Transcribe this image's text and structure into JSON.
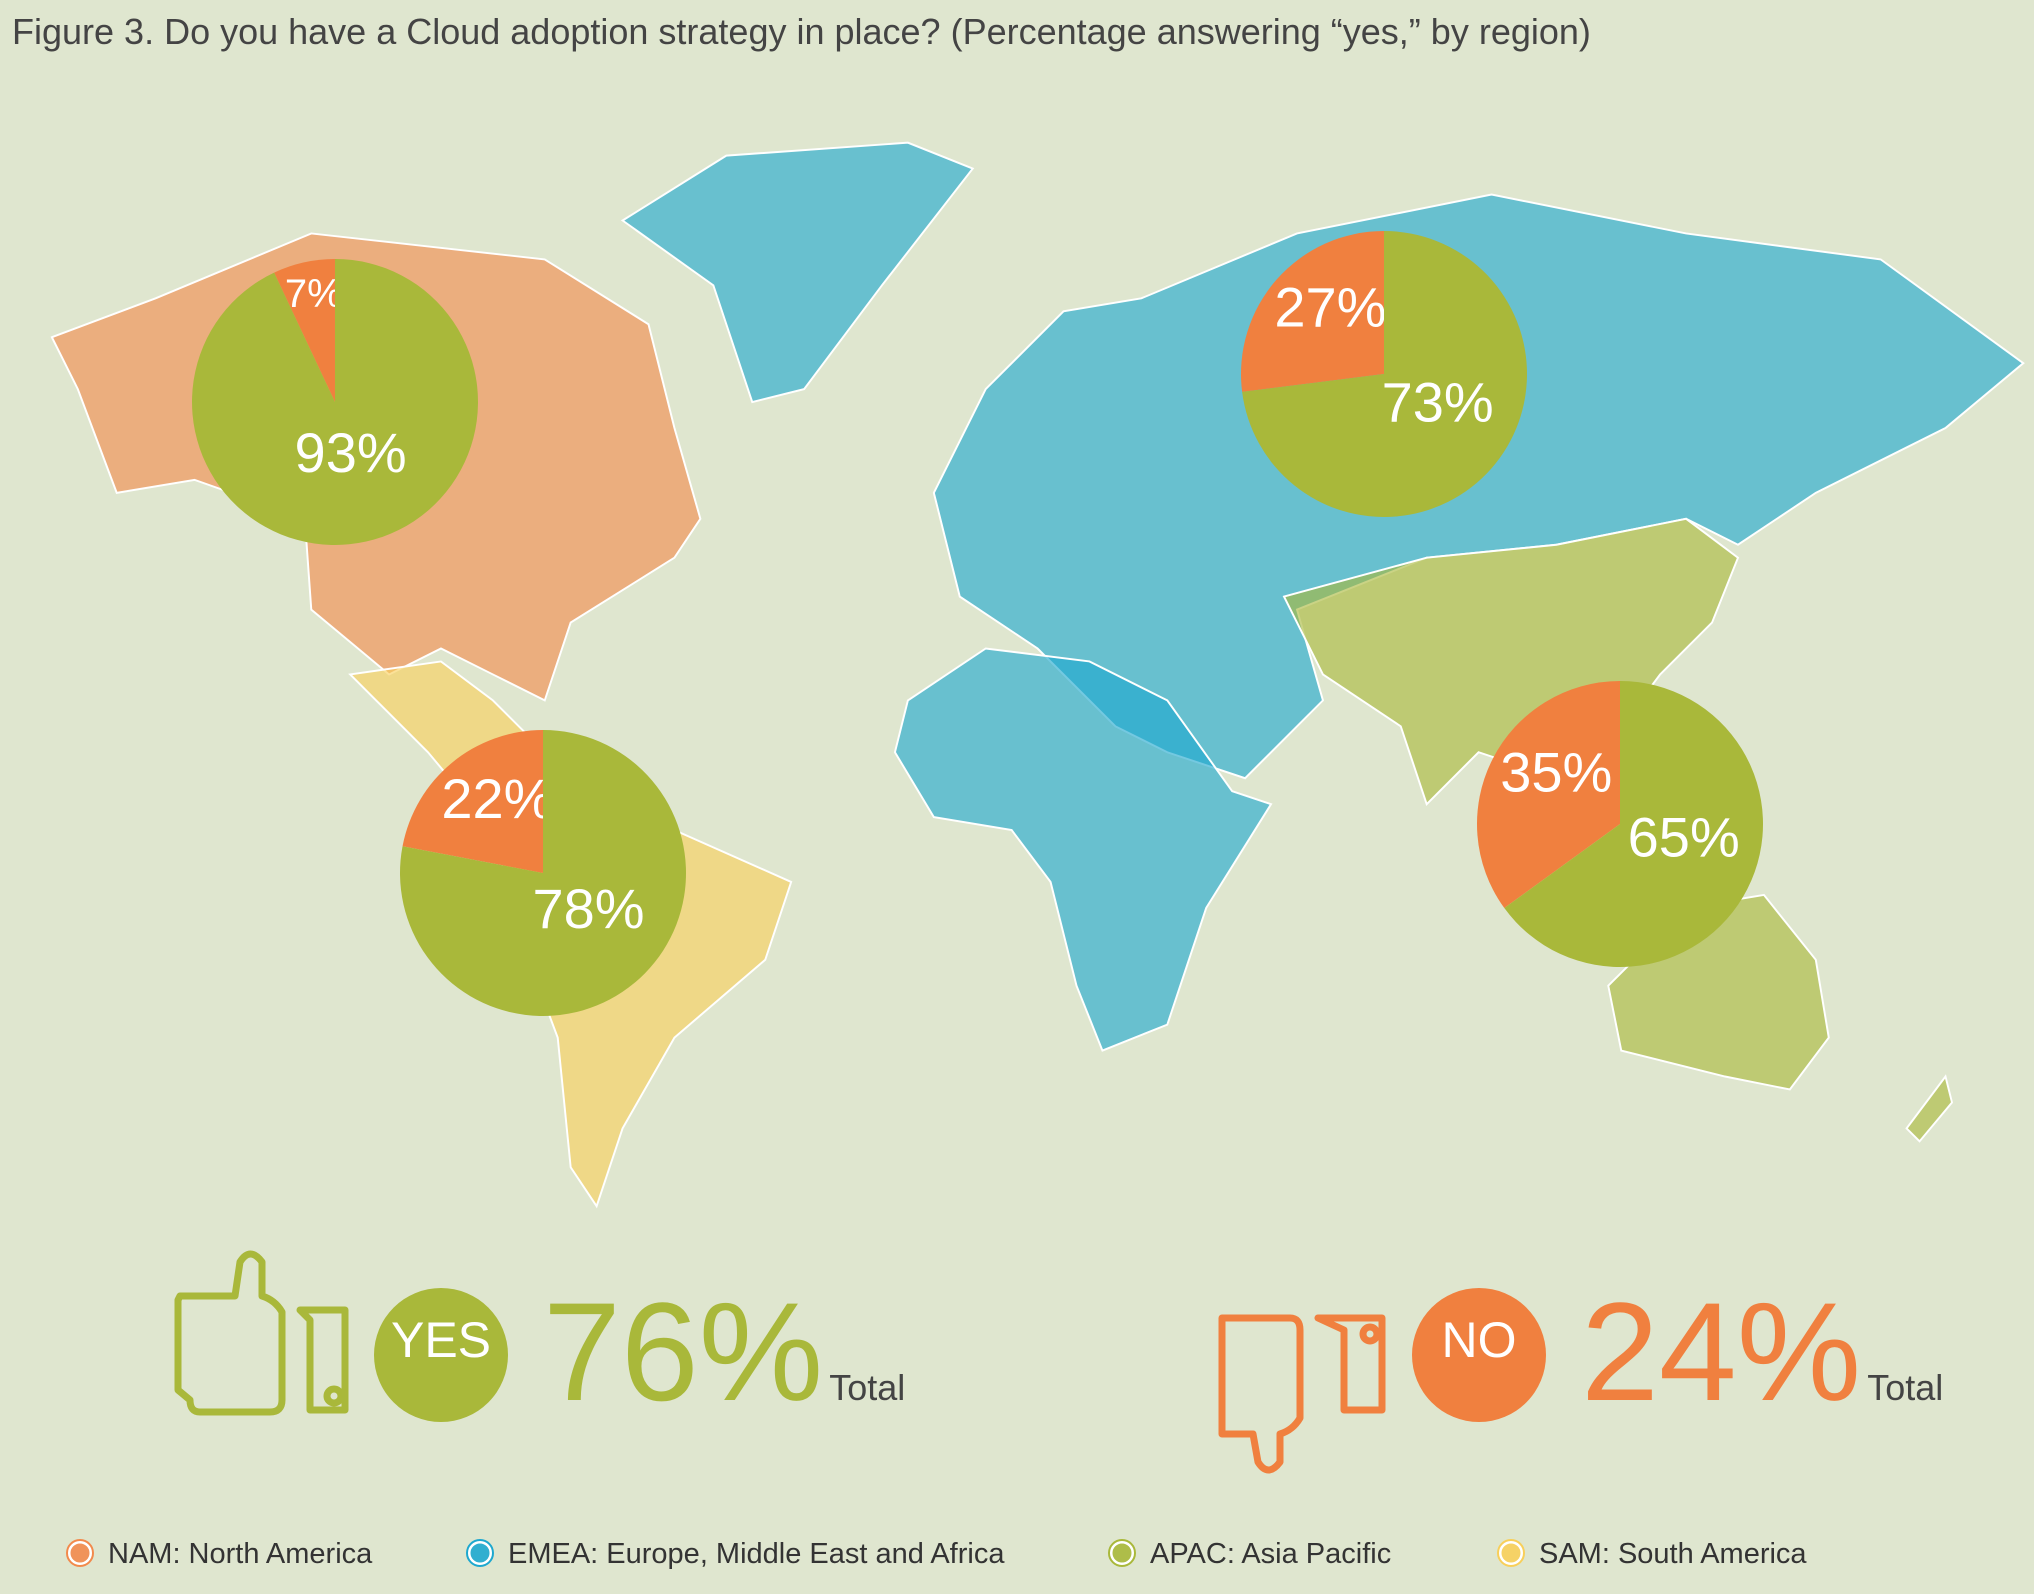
{
  "title": "Figure 3. Do you have a Cloud adoption strategy in place? (Percentage answering “yes,” by region)",
  "chart_data": [
    {
      "type": "pie",
      "values": [
        7,
        93
      ],
      "value_labels": [
        "7%",
        "93%"
      ],
      "colors": [
        "#f0803f",
        "#a9b83a"
      ]
    },
    {
      "type": "pie",
      "values": [
        27,
        73
      ],
      "value_labels": [
        "27%",
        "73%"
      ],
      "colors": [
        "#f0803f",
        "#a9b83a"
      ]
    },
    {
      "type": "pie",
      "values": [
        22,
        78
      ],
      "value_labels": [
        "22%",
        "78%"
      ],
      "colors": [
        "#f0803f",
        "#a9b83a"
      ]
    },
    {
      "type": "pie",
      "values": [
        35,
        65
      ],
      "value_labels": [
        "35%",
        "65%"
      ],
      "colors": [
        "#f0803f",
        "#a9b83a"
      ]
    }
  ],
  "totals": [
    {
      "badge": "YES",
      "value": "76%",
      "note": "Total",
      "color": "#a9b83a"
    },
    {
      "badge": "NO",
      "value": "24%",
      "note": "Total",
      "color": "#f0803f"
    }
  ],
  "legend": [
    {
      "label": "NAM: North America",
      "color": "#f28a4c"
    },
    {
      "label": "EMEA: Europe, Middle East and Africa",
      "color": "#1ea8cf"
    },
    {
      "label": "APAC: Asia Pacific",
      "color": "#a9b83a"
    },
    {
      "label": "SAM: South America",
      "color": "#f8cf5a"
    }
  ]
}
